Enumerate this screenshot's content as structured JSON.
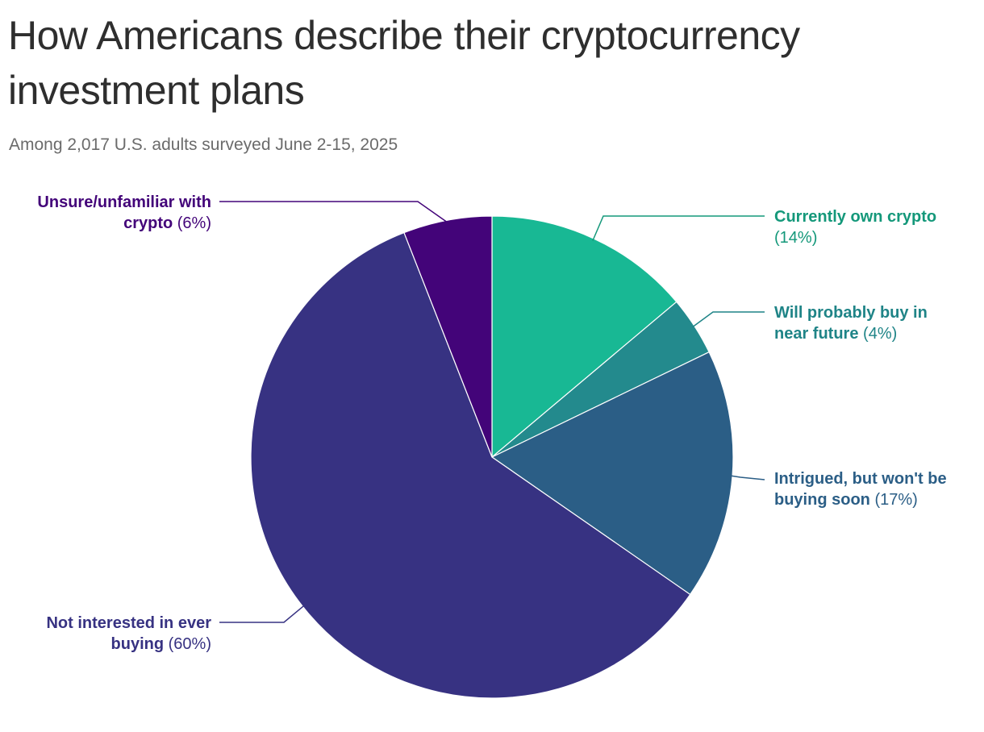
{
  "header": {
    "title": "How Americans describe their cryptocurrency investment plans",
    "subtitle": "Among 2,017 U.S. adults surveyed June 2-15, 2025"
  },
  "chart_data": {
    "type": "pie",
    "start_angle_deg": 0,
    "direction": "clockwise",
    "slices": [
      {
        "key": "own",
        "label": "Currently own crypto",
        "pct_label": "(14%)",
        "value": 14,
        "color": "#18b894",
        "label_color": "#14987a"
      },
      {
        "key": "will_buy",
        "label": "Will probably buy in near future",
        "pct_label": "(4%)",
        "value": 4,
        "color": "#238a8d",
        "label_color": "#1f8487"
      },
      {
        "key": "intrigued",
        "label": "Intrigued, but won't be buying soon",
        "pct_label": "(17%)",
        "value": 17,
        "color": "#2b5e86",
        "label_color": "#2b5e86"
      },
      {
        "key": "not_interested",
        "label": "Not interested in ever buying",
        "pct_label": "(60%)",
        "value": 60,
        "color": "#373282",
        "label_color": "#373282"
      },
      {
        "key": "unsure",
        "label": "Unsure/unfamiliar with crypto",
        "pct_label": "(6%)",
        "value": 6,
        "color": "#430479",
        "label_color": "#430479"
      }
    ],
    "legend": "none"
  }
}
